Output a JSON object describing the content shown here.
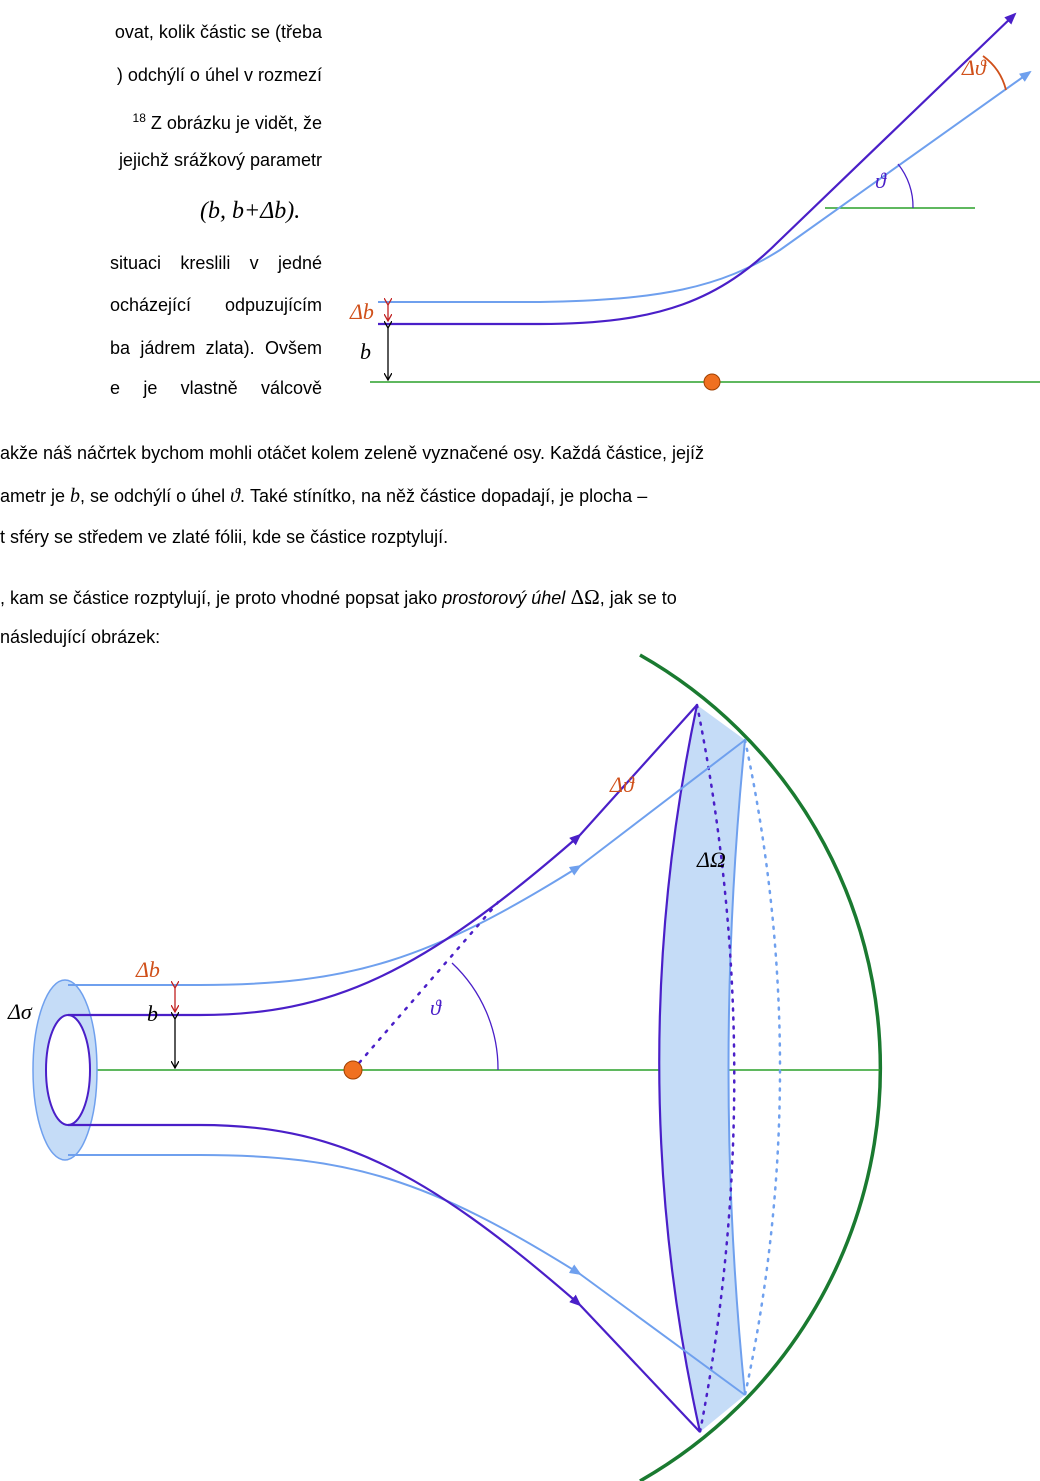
{
  "intro_lines": [
    "ovat, kolik částic se (třeba",
    ") odchýlí o úhel v rozmezí",
    "Z obrázku je vidět, že",
    "jejichž srážkový parametr"
  ],
  "footnote_ref": "18",
  "interval": "(b, b+Δb).",
  "side_lines": [
    "situaci kreslili v jedné",
    "ocházející odpuzujícím",
    "ba jádrem zlata). Ovšem",
    "e je vlastně válcově"
  ],
  "body_lines": [
    [
      "akže náš náčrtek bychom mohli otáčet kolem zeleně vyznačené osy. Každá částice, jejíž"
    ],
    [
      "ametr je ",
      "b",
      ", se odchýlí o úhel ",
      "ϑ",
      ". Také stínítko, na něž částice dopadají, je plocha –"
    ],
    [
      "t sféry se středem ve zlaté fólii, kde se částice rozptylují."
    ],
    [
      ", kam se částice rozptylují, je proto vhodné popsat jako ",
      "prostorový úhel",
      " ΔΩ",
      ", jak se to"
    ],
    [
      "následující obrázek:"
    ]
  ],
  "figure1": {
    "delta_theta": "Δϑ",
    "theta": "ϑ",
    "delta_b": "Δb",
    "b": "b"
  },
  "figure2": {
    "delta_theta": "Δϑ",
    "delta_omega": "ΔΩ",
    "delta_b": "Δb",
    "b": "b",
    "delta_sigma": "Δσ",
    "theta": "ϑ"
  }
}
